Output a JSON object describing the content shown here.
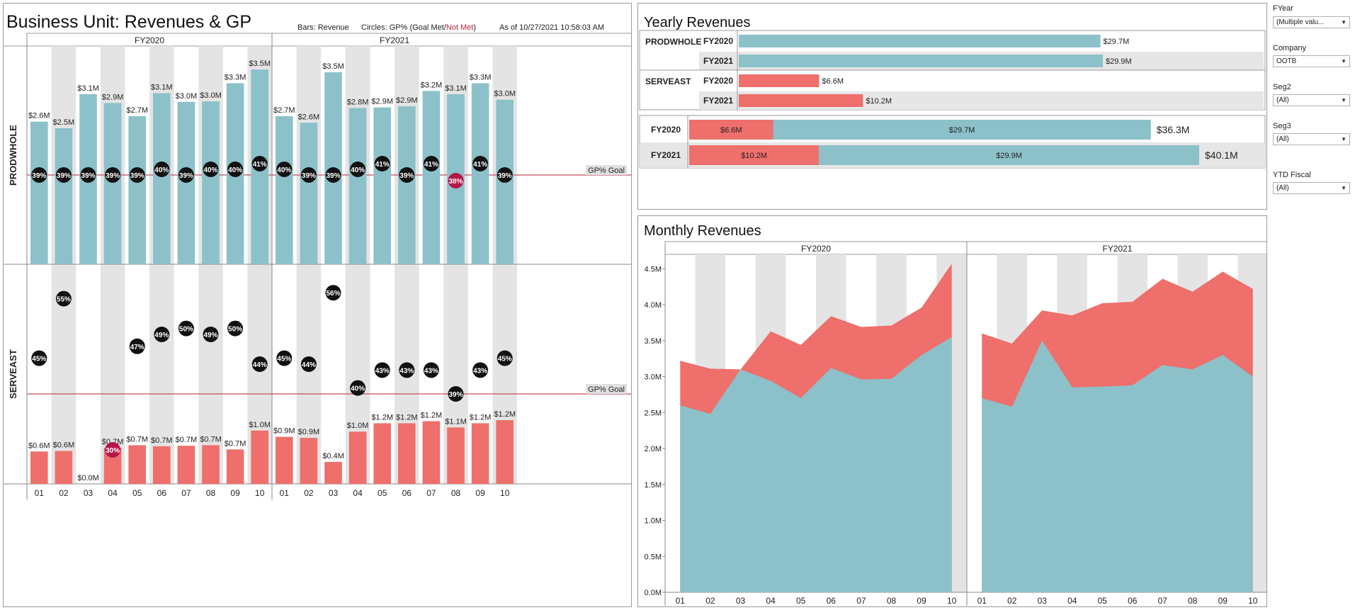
{
  "dashboard": {
    "title": "Business Unit: Revenues & GP",
    "legend_bars": "Bars: Revenue",
    "legend_circles_prefix": "Circles: GP%  (Goal Met/",
    "legend_not_met": "Not Met",
    "legend_circles_suffix": ")",
    "as_of": "As of 10/27/2021 10:58:03 AM"
  },
  "colors": {
    "prodwhole": "#8cc1c9",
    "serveast": "#ee6f6b",
    "gp_met": "#111111",
    "gp_not_met": "#b51648",
    "goal_line": "#c74a5c",
    "band": "#e4e4e4"
  },
  "chart_data": [
    {
      "type": "bar",
      "title": "Business Unit: Revenues & GP",
      "columns": [
        "FY2020",
        "FY2021"
      ],
      "categories": [
        "01",
        "02",
        "03",
        "04",
        "05",
        "06",
        "07",
        "08",
        "09",
        "10"
      ],
      "goal_label": "GP% Goal",
      "rows": [
        {
          "name": "PRODWHOLE",
          "revenue_labels": {
            "FY2020": [
              "$2.6M",
              "$2.5M",
              "$3.1M",
              "$2.9M",
              "$2.7M",
              "$3.1M",
              "$3.0M",
              "$3.0M",
              "$3.3M",
              "$3.5M"
            ],
            "FY2021": [
              "$2.7M",
              "$2.6M",
              "$3.5M",
              "$2.8M",
              "$2.9M",
              "$2.9M",
              "$3.2M",
              "$3.1M",
              "$3.3M",
              "$3.0M"
            ]
          },
          "revenue_values": {
            "FY2020": [
              2.6,
              2.48,
              3.1,
              2.94,
              2.7,
              3.12,
              2.96,
              2.97,
              3.3,
              3.55
            ],
            "FY2021": [
              2.7,
              2.58,
              3.5,
              2.85,
              2.86,
              2.88,
              3.16,
              3.1,
              3.3,
              3.0
            ]
          },
          "gp_pct": {
            "FY2020": [
              39,
              39,
              39,
              39,
              39,
              40,
              39,
              40,
              40,
              41
            ],
            "FY2021": [
              40,
              39,
              39,
              40,
              41,
              39,
              41,
              38,
              41,
              39
            ]
          },
          "goal_pct": 39,
          "gp_goal_met": {
            "FY2020": [
              true,
              true,
              true,
              true,
              true,
              true,
              true,
              true,
              true,
              true
            ],
            "FY2021": [
              true,
              true,
              true,
              true,
              true,
              true,
              true,
              false,
              true,
              true
            ]
          }
        },
        {
          "name": "SERVEAST",
          "revenue_labels": {
            "FY2020": [
              "$0.6M",
              "$0.6M",
              "$0.0M",
              "$0.7M",
              "$0.7M",
              "$0.7M",
              "$0.7M",
              "$0.7M",
              "$0.7M",
              "$1.0M"
            ],
            "FY2021": [
              "$0.9M",
              "$0.9M",
              "$0.4M",
              "$1.0M",
              "$1.2M",
              "$1.2M",
              "$1.2M",
              "$1.1M",
              "$1.2M",
              "$1.2M"
            ]
          },
          "revenue_values": {
            "FY2020": [
              0.62,
              0.63,
              0.0,
              0.69,
              0.74,
              0.72,
              0.73,
              0.74,
              0.66,
              1.02
            ],
            "FY2021": [
              0.9,
              0.88,
              0.42,
              1.0,
              1.16,
              1.16,
              1.2,
              1.08,
              1.16,
              1.22
            ]
          },
          "gp_pct": {
            "FY2020": [
              45,
              55,
              null,
              30,
              47,
              49,
              50,
              49,
              50,
              44
            ],
            "FY2021": [
              45,
              44,
              56,
              40,
              43,
              43,
              43,
              39,
              43,
              45
            ]
          },
          "goal_pct": 39,
          "gp_goal_met": {
            "FY2020": [
              true,
              true,
              null,
              false,
              true,
              true,
              true,
              true,
              true,
              true
            ],
            "FY2021": [
              true,
              true,
              true,
              true,
              true,
              true,
              true,
              true,
              true,
              true
            ]
          }
        }
      ]
    },
    {
      "type": "bar",
      "title": "Yearly Revenues",
      "rows": [
        {
          "segment": "PRODWHOLE",
          "year": "FY2020",
          "value": 29.7,
          "label": "$29.7M"
        },
        {
          "segment": "PRODWHOLE",
          "year": "FY2021",
          "value": 29.9,
          "label": "$29.9M"
        },
        {
          "segment": "SERVEAST",
          "year": "FY2020",
          "value": 6.6,
          "label": "$6.6M"
        },
        {
          "segment": "SERVEAST",
          "year": "FY2021",
          "value": 10.2,
          "label": "$10.2M"
        }
      ],
      "stacked": [
        {
          "year": "FY2020",
          "serveast": 6.6,
          "serveast_label": "$6.6M",
          "prodwhole": 29.7,
          "prodwhole_label": "$29.7M",
          "total_label": "$36.3M"
        },
        {
          "year": "FY2021",
          "serveast": 10.2,
          "serveast_label": "$10.2M",
          "prodwhole": 29.9,
          "prodwhole_label": "$29.9M",
          "total_label": "$40.1M"
        }
      ]
    },
    {
      "type": "area",
      "title": "Monthly Revenues",
      "columns": [
        "FY2020",
        "FY2021"
      ],
      "categories": [
        "01",
        "02",
        "03",
        "04",
        "05",
        "06",
        "07",
        "08",
        "09",
        "10"
      ],
      "ylim": [
        0,
        4.7
      ],
      "yticks": [
        "0.0M",
        "0.5M",
        "1.0M",
        "1.5M",
        "2.0M",
        "2.5M",
        "3.0M",
        "3.5M",
        "4.0M",
        "4.5M"
      ],
      "series": [
        {
          "name": "PRODWHOLE",
          "FY2020": [
            2.6,
            2.48,
            3.1,
            2.94,
            2.7,
            3.12,
            2.96,
            2.97,
            3.3,
            3.55
          ],
          "FY2021": [
            2.7,
            2.58,
            3.5,
            2.85,
            2.86,
            2.88,
            3.16,
            3.1,
            3.3,
            3.0
          ]
        },
        {
          "name": "SERVEAST",
          "FY2020": [
            0.62,
            0.63,
            0.0,
            0.69,
            0.74,
            0.72,
            0.73,
            0.74,
            0.66,
            1.02
          ],
          "FY2021": [
            0.9,
            0.88,
            0.42,
            1.0,
            1.16,
            1.16,
            1.2,
            1.08,
            1.16,
            1.22
          ]
        }
      ]
    }
  ],
  "filters": [
    {
      "label": "FYear",
      "value": "(Multiple valu..."
    },
    {
      "label": "Company",
      "value": "OOTB"
    },
    {
      "label": "Seg2",
      "value": "(All)"
    },
    {
      "label": "Seg3",
      "value": "(All)"
    },
    {
      "label": "YTD Fiscal",
      "value": "(All)"
    }
  ]
}
